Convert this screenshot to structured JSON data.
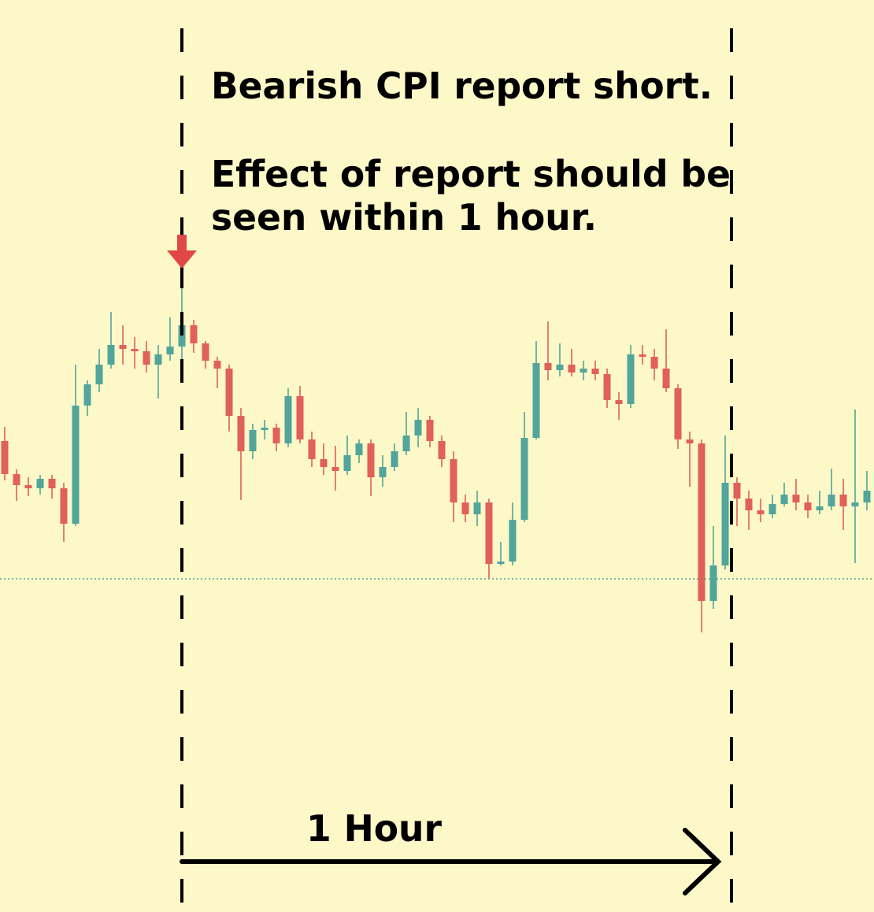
{
  "chart_data": {
    "type": "candlestick",
    "annotations": [
      "Bearish CPI report short.",
      "Effect of report should be",
      "seen within 1 hour."
    ],
    "duration_label": "1 Hour",
    "ylim": [
      0,
      115.8
    ],
    "reference_line": 42.3,
    "up_color": "#52a59b",
    "down_color": "#e0605a",
    "open": [
      59.8,
      55.6,
      54.2,
      53.8,
      55,
      53.8,
      49.3,
      64.3,
      67,
      69.5,
      72,
      71.5,
      71.2,
      69.5,
      70.8,
      71.8,
      74.5,
      72.2,
      70,
      69,
      63,
      58.5,
      61.2,
      61.5,
      59.5,
      65.5,
      60,
      57.5,
      56.5,
      56,
      58,
      59.5,
      55.2,
      56.5,
      58.5,
      60.5,
      62.5,
      59.8,
      57.5,
      52,
      50.5,
      52,
      44.2,
      44.5,
      49.8,
      60.2,
      69.7,
      68.8,
      69.5,
      68.5,
      69,
      68.3,
      65,
      64.5,
      70.8,
      70.5,
      69,
      66.5,
      60,
      59.5,
      39.5,
      44,
      54.5,
      52.5,
      51,
      50.5,
      51.8,
      53,
      52,
      51,
      51.5,
      53,
      51.5,
      52
    ],
    "high": [
      61.6,
      56.2,
      55.2,
      55.5,
      55.5,
      54.5,
      69.5,
      67.5,
      71.5,
      76.2,
      74.5,
      73,
      72.5,
      72,
      75.5,
      80,
      75.2,
      72.5,
      70.5,
      69.5,
      64,
      62,
      62.5,
      62,
      66.5,
      66.8,
      61,
      59.5,
      59.2,
      60.5,
      60,
      60,
      58,
      59.5,
      63.5,
      64,
      63,
      60.5,
      58.5,
      53,
      53.5,
      52.5,
      47,
      52,
      63.5,
      72.5,
      75,
      72.2,
      71.5,
      70,
      70,
      69,
      66,
      72,
      72,
      71.5,
      74,
      67,
      61,
      60,
      49,
      60.5,
      55.2,
      53.5,
      52.5,
      53,
      54.5,
      55,
      53,
      53.5,
      56.3,
      55,
      63.8,
      56
    ],
    "low": [
      54.8,
      52.2,
      52.8,
      53,
      52.5,
      47,
      49,
      63,
      66,
      69,
      69.5,
      69,
      68.5,
      65.2,
      70,
      69.8,
      71,
      69,
      66.5,
      61,
      52.3,
      57.5,
      60,
      58.5,
      59,
      59.5,
      56.5,
      55.5,
      53.5,
      55.5,
      57,
      52.8,
      54,
      56,
      58,
      59,
      59,
      56.5,
      49.5,
      49.5,
      49,
      42.3,
      44,
      44,
      49.5,
      60,
      67.5,
      68,
      68,
      67.5,
      67.5,
      64,
      62.5,
      64,
      69.5,
      67.5,
      66,
      58.8,
      54,
      35.5,
      38.5,
      43.5,
      49,
      48.5,
      49.5,
      50,
      51.5,
      51,
      50,
      50.5,
      51,
      48.5,
      44.3,
      51
    ],
    "close": [
      55.6,
      54.2,
      53.8,
      55,
      53.8,
      49.3,
      64.3,
      67,
      69.5,
      72,
      71.5,
      71.2,
      69.5,
      70.8,
      71.8,
      74.5,
      72.2,
      70,
      69,
      63,
      58.5,
      61.2,
      61.5,
      59.5,
      65.5,
      60,
      57.5,
      56.5,
      56,
      58,
      59.5,
      55.2,
      56.5,
      58.5,
      60.5,
      62.5,
      59.8,
      57.5,
      52,
      50.5,
      52,
      44.2,
      44.5,
      49.8,
      60.2,
      69.7,
      68.8,
      69.5,
      68.5,
      69,
      68.3,
      65,
      64.5,
      70.8,
      70.5,
      69,
      66.5,
      60,
      59.5,
      39.5,
      44,
      54.5,
      52.5,
      51,
      50.5,
      51.8,
      53,
      52,
      51,
      51.5,
      53,
      51.5,
      52,
      53.5
    ]
  }
}
